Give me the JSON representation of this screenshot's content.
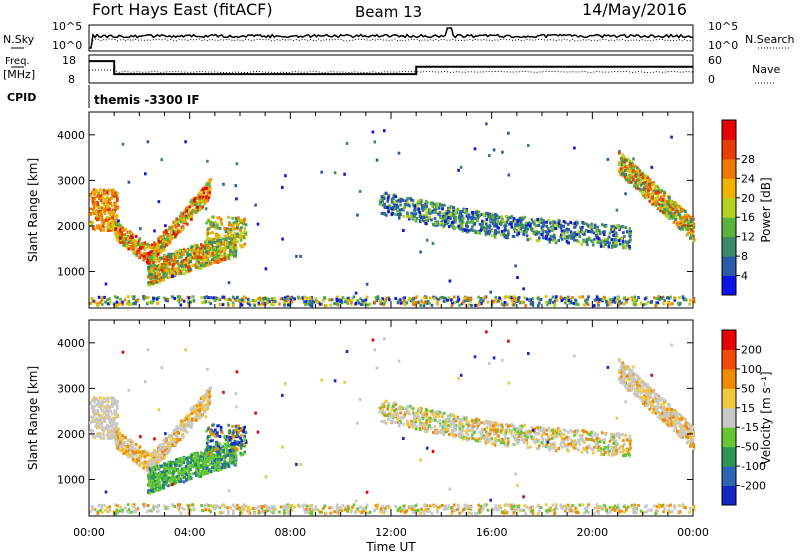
{
  "header": {
    "title": "Fort Hays East (fitACF)",
    "beam": "Beam 13",
    "date": "14/May/2016"
  },
  "labels": {
    "nsky": "N.Sky",
    "nsearch": "N.Search",
    "freq_top": "Freq.",
    "freq_unit": "[MHz]",
    "nave": "Nave",
    "cpid": "CPID",
    "cpid_value": "themis -3300 IF",
    "power_label": "Power [dB]",
    "velocity_label": "Velocity [m s⁻¹]"
  },
  "colors": {
    "power_scale": [
      "#0a14e6",
      "#2a5aa8",
      "#3a8a6a",
      "#5ab43c",
      "#b4d21e",
      "#f0b400",
      "#f07800",
      "#e63c00",
      "#e60000"
    ],
    "velocity_scale": [
      "#e60000",
      "#f04b00",
      "#f08c00",
      "#f0c83c",
      "#c8c8c8",
      "#64c832",
      "#2a9650",
      "#2a64b4",
      "#1428c8"
    ]
  },
  "chart_data": [
    {
      "type": "line",
      "name": "noise",
      "left_axis": {
        "label": "N.Sky",
        "ticks": [
          "10^5",
          "10^0"
        ]
      },
      "right_axis": {
        "label": "N.Search",
        "ticks": [
          "10^5",
          "10^0"
        ]
      }
    },
    {
      "type": "line",
      "name": "frequency-nave",
      "left_axis": {
        "label": "Freq. [MHz]",
        "ticks": [
          "18",
          "8"
        ]
      },
      "right_axis": {
        "label": "Nave",
        "ticks": [
          "60",
          "0"
        ]
      },
      "freq_steps": [
        {
          "x0": 0.0,
          "x1": 1.0,
          "y": 17
        },
        {
          "x0": 1.0,
          "x1": 13.0,
          "y": 10.8
        },
        {
          "x0": 13.0,
          "x1": 24.0,
          "y": 14.3
        }
      ]
    },
    {
      "type": "heatmap",
      "name": "power",
      "ylabel": "Slant Range [km]",
      "ylim": [
        200,
        4500
      ],
      "y_ticks": [
        1000,
        2000,
        3000,
        4000
      ],
      "xlim": [
        0,
        24
      ],
      "colorbar": {
        "label": "Power [dB]",
        "ticks": [
          "4",
          "8",
          "12",
          "16",
          "20",
          "24",
          "28"
        ]
      }
    },
    {
      "type": "heatmap",
      "name": "velocity",
      "ylabel": "Slant Range [km]",
      "ylim": [
        200,
        4500
      ],
      "y_ticks": [
        1000,
        2000,
        3000,
        4000
      ],
      "xlim": [
        0,
        24
      ],
      "x_ticks": [
        "00:00",
        "04:00",
        "08:00",
        "12:00",
        "16:00",
        "20:00",
        "00:00"
      ],
      "xlabel": "Time UT",
      "colorbar": {
        "label": "Velocity [m s⁻¹]",
        "ticks": [
          "200",
          "100",
          "50",
          "15",
          "-15",
          "-50",
          "-100",
          "-200"
        ]
      }
    }
  ]
}
